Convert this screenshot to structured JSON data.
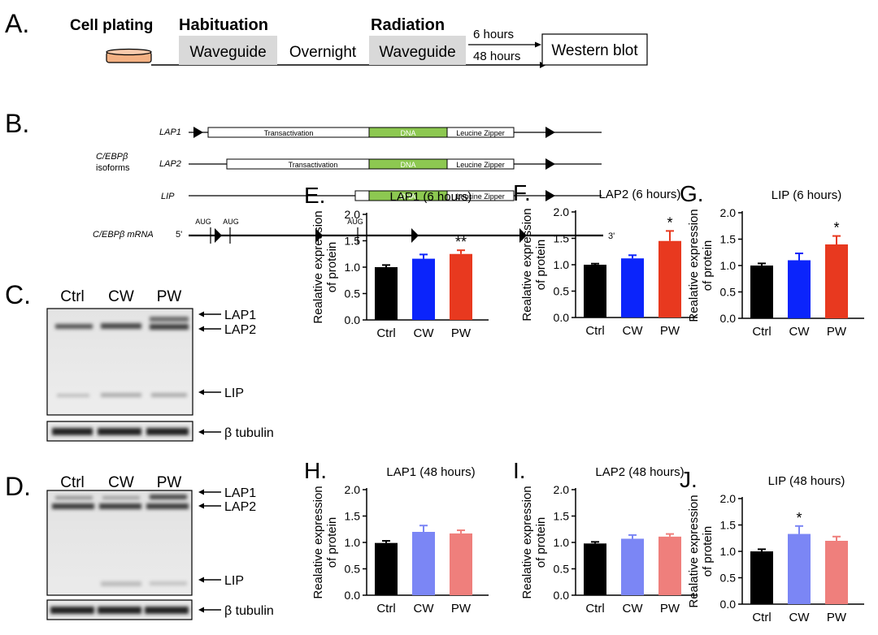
{
  "panel_a": {
    "letter": "A.",
    "cell_plating": "Cell plating",
    "habituation": "Habituation",
    "waveguide_1": "Waveguide",
    "overnight": "Overnight",
    "radiation": "Radiation",
    "waveguide_2": "Waveguide",
    "time_6h": "6 hours",
    "time_48h": "48 hours",
    "western_blot": "Western blot",
    "colors": {
      "waveguide_box": "#d9d9d9",
      "dish": "#f4b183"
    }
  },
  "panel_b": {
    "letter": "B.",
    "group_label_1": "C/EBPβ",
    "group_label_2": "isoforms",
    "isoforms": [
      {
        "name": "LAP1",
        "transactivation": "Transactivation",
        "dna": "DNA",
        "zipper": "Leucine Zipper"
      },
      {
        "name": "LAP2",
        "transactivation": "Transactivation",
        "dna": "DNA",
        "zipper": "Leucine Zipper"
      },
      {
        "name": "LIP",
        "transactivation": "",
        "dna": "DNA",
        "zipper": "Leucine Zipper"
      }
    ],
    "mrna_label": "C/EBPβ mRNA",
    "five_prime": "5'",
    "three_prime": "3'",
    "aug": [
      "AUG",
      "AUG",
      "AUG"
    ],
    "colors": {
      "dna": "#8dc851"
    }
  },
  "blots": [
    {
      "letter": "C.",
      "lanes": [
        "Ctrl",
        "CW",
        "PW"
      ],
      "bands": [
        "LAP1",
        "LAP2",
        "LIP"
      ],
      "loading": "β tubulin"
    },
    {
      "letter": "D.",
      "lanes": [
        "Ctrl",
        "CW",
        "PW"
      ],
      "bands": [
        "LAP1",
        "LAP2",
        "LIP"
      ],
      "loading": "β tubulin"
    }
  ],
  "chart_data": [
    {
      "letter": "E.",
      "type": "bar",
      "title": "LAP1 (6 hours)",
      "ylabel_1": "Realative expression",
      "ylabel_2": "of protein",
      "categories": [
        "Ctrl",
        "CW",
        "PW"
      ],
      "values": [
        1.0,
        1.16,
        1.25
      ],
      "errors": [
        0.04,
        0.08,
        0.07
      ],
      "annotations": [
        "",
        "",
        "**"
      ],
      "colors": [
        "#000000",
        "#0b24fb",
        "#e8391f"
      ],
      "ylim": [
        0,
        2.0
      ],
      "yticks": [
        "0.0",
        "0.5",
        "1.0",
        "1.5",
        "2.0"
      ]
    },
    {
      "letter": "F.",
      "type": "bar",
      "title": "LAP2 (6 hours)",
      "ylabel_1": "Realative expression",
      "ylabel_2": "of protein",
      "categories": [
        "Ctrl",
        "CW",
        "PW"
      ],
      "values": [
        1.0,
        1.12,
        1.45
      ],
      "errors": [
        0.02,
        0.06,
        0.19
      ],
      "annotations": [
        "",
        "",
        "*"
      ],
      "colors": [
        "#000000",
        "#0b24fb",
        "#e8391f"
      ],
      "ylim": [
        0,
        2.0
      ],
      "yticks": [
        "0.0",
        "0.5",
        "1.0",
        "1.5",
        "2.0"
      ]
    },
    {
      "letter": "G.",
      "type": "bar",
      "title": "LIP (6 hours)",
      "ylabel_1": "Realative expression",
      "ylabel_2": "of protein",
      "categories": [
        "Ctrl",
        "CW",
        "PW"
      ],
      "values": [
        1.0,
        1.1,
        1.4
      ],
      "errors": [
        0.04,
        0.13,
        0.16
      ],
      "annotations": [
        "",
        "",
        "*"
      ],
      "colors": [
        "#000000",
        "#0b24fb",
        "#e8391f"
      ],
      "ylim": [
        0,
        2.0
      ],
      "yticks": [
        "0.0",
        "0.5",
        "1.0",
        "1.5",
        "2.0"
      ]
    },
    {
      "letter": "H.",
      "type": "bar",
      "title": "LAP1 (48 hours)",
      "ylabel_1": "Realative expression",
      "ylabel_2": "of protein",
      "categories": [
        "Ctrl",
        "CW",
        "PW"
      ],
      "values": [
        0.99,
        1.2,
        1.17
      ],
      "errors": [
        0.04,
        0.12,
        0.06
      ],
      "annotations": [
        "",
        "",
        ""
      ],
      "colors": [
        "#000000",
        "#7b86f5",
        "#ef7f7c"
      ],
      "ylim": [
        0,
        2.0
      ],
      "yticks": [
        "0.0",
        "0.5",
        "1.0",
        "1.5",
        "2.0"
      ]
    },
    {
      "letter": "I.",
      "type": "bar",
      "title": "LAP2 (48 hours)",
      "ylabel_1": "Realative expression",
      "ylabel_2": "of protein",
      "categories": [
        "Ctrl",
        "CW",
        "PW"
      ],
      "values": [
        0.98,
        1.07,
        1.11
      ],
      "errors": [
        0.03,
        0.07,
        0.05
      ],
      "annotations": [
        "",
        "",
        ""
      ],
      "colors": [
        "#000000",
        "#7b86f5",
        "#ef7f7c"
      ],
      "ylim": [
        0,
        2.0
      ],
      "yticks": [
        "0.0",
        "0.5",
        "1.0",
        "1.5",
        "2.0"
      ]
    },
    {
      "letter": "J.",
      "type": "bar",
      "title": "LIP (48 hours)",
      "ylabel_1": "Realative expression",
      "ylabel_2": "of protein",
      "categories": [
        "Ctrl",
        "CW",
        "PW"
      ],
      "values": [
        1.0,
        1.33,
        1.2
      ],
      "errors": [
        0.04,
        0.15,
        0.08
      ],
      "annotations": [
        "",
        "*",
        ""
      ],
      "colors": [
        "#000000",
        "#7b86f5",
        "#ef7f7c"
      ],
      "ylim": [
        0,
        2.0
      ],
      "yticks": [
        "0.0",
        "0.5",
        "1.0",
        "1.5",
        "2.0"
      ]
    }
  ]
}
